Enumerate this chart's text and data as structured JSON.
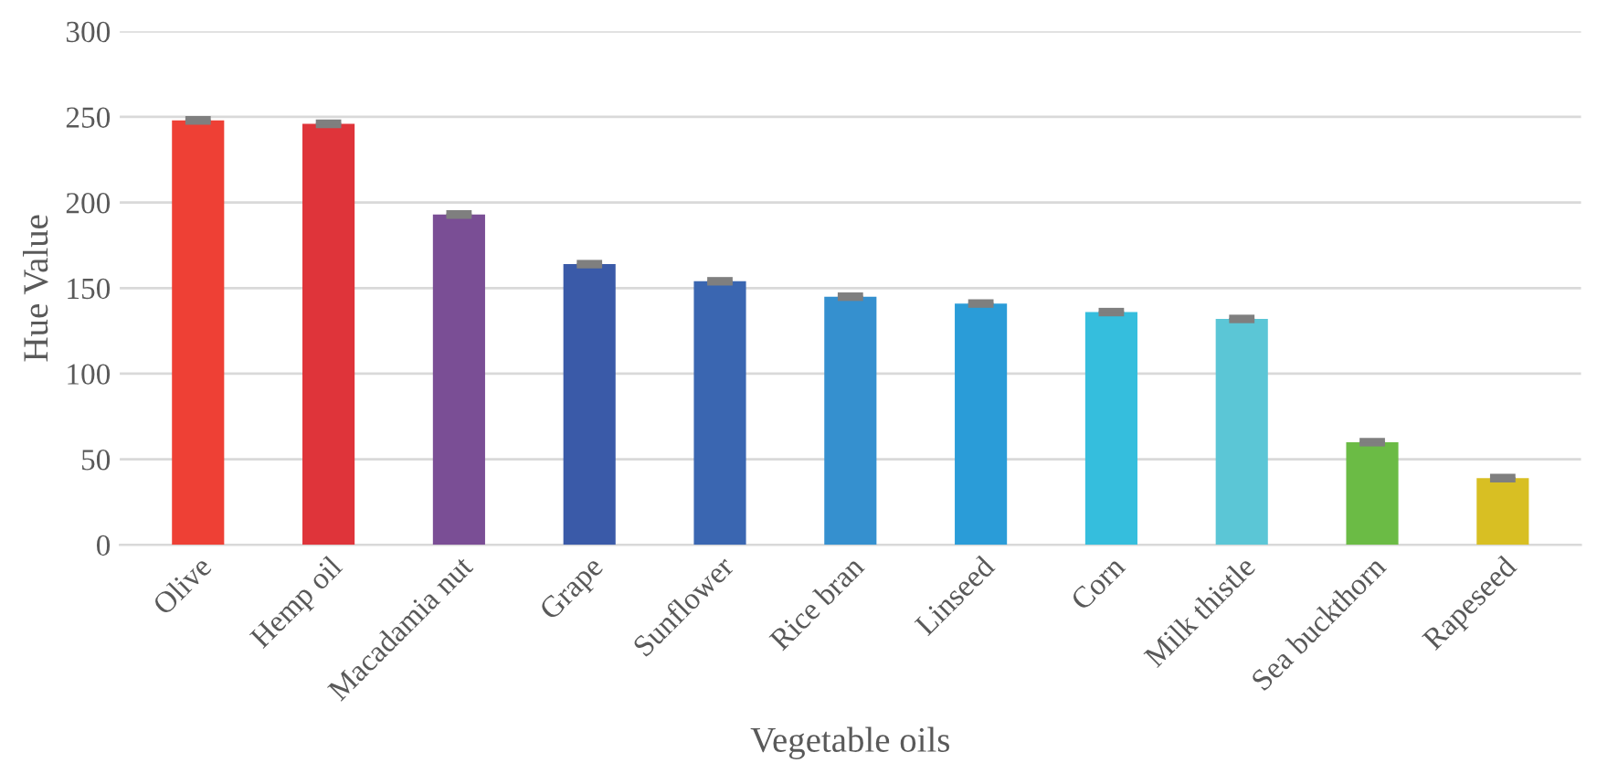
{
  "chart_data": {
    "type": "bar",
    "xlabel": "Vegetable oils",
    "ylabel": "Hue Value",
    "categories": [
      "Olive",
      "Hemp oil",
      "Macadamia nut",
      "Grape",
      "Sunflower",
      "Rice bran",
      "Linseed",
      "Corn",
      "Milk thistle",
      "Sea buckthorn",
      "Rapeseed"
    ],
    "values": [
      248,
      246,
      193,
      164,
      154,
      145,
      141,
      136,
      132,
      60,
      39
    ],
    "colors": [
      "#ee4035",
      "#df343a",
      "#7a4e95",
      "#3a5aa8",
      "#3a66b1",
      "#3590cf",
      "#2a9cd8",
      "#35bedd",
      "#5bc6d6",
      "#6bbb45",
      "#d8bf23"
    ],
    "errors": [
      1,
      1,
      1,
      1,
      1,
      1,
      1,
      1,
      1,
      1,
      1
    ],
    "ylim": [
      0,
      300
    ],
    "yticks": [
      0,
      50,
      100,
      150,
      200,
      250,
      300
    ],
    "grid": "y"
  }
}
